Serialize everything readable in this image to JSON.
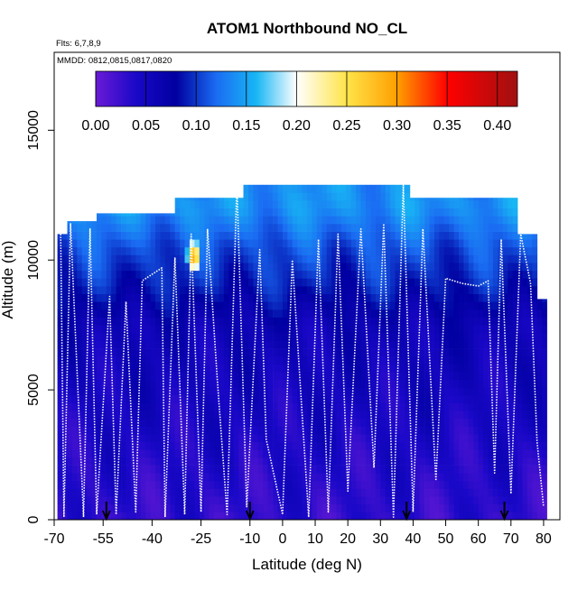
{
  "chart_data": {
    "type": "heatmap",
    "title": "ATOM1 Northbound NO_CL",
    "info_lines": [
      "Flts: 6,7,8,9",
      "MMDD: 0812,0815,0817,0820"
    ],
    "xlabel": "Latitude (deg N)",
    "ylabel": "Altitude (m)",
    "xlim": [
      -70,
      85
    ],
    "ylim": [
      0,
      18000
    ],
    "x_ticks": [
      -70,
      -55,
      -40,
      -25,
      -10,
      0,
      10,
      20,
      30,
      40,
      50,
      60,
      70,
      80
    ],
    "y_ticks": [
      0,
      5000,
      10000,
      15000
    ],
    "colorbar": {
      "range": [
        0,
        0.42
      ],
      "tick_values": [
        0.0,
        0.05,
        0.1,
        0.15,
        0.2,
        0.25,
        0.3,
        0.35,
        0.4
      ],
      "tick_labels": [
        "0.00",
        "0.05",
        "0.10",
        "0.15",
        "0.20",
        "0.25",
        "0.30",
        "0.35",
        "0.40"
      ],
      "colors": [
        "#6a1bd6",
        "#1a08c8",
        "#0000a0",
        "#1a6cf2",
        "#18b6f4",
        "#ffffff",
        "#ffe44a",
        "#ff9f00",
        "#ff0000",
        "#a01010"
      ],
      "color_stops": [
        0.0,
        0.04,
        0.08,
        0.12,
        0.16,
        0.2,
        0.25,
        0.3,
        0.35,
        0.42
      ]
    },
    "grid": false,
    "legend": "none",
    "column_tops": [
      {
        "lat_range": [
          -69,
          -67
        ],
        "top_m": 11000
      },
      {
        "lat_range": [
          -67,
          -58
        ],
        "top_m": 11500
      },
      {
        "lat_range": [
          -58,
          -34
        ],
        "top_m": 11800
      },
      {
        "lat_range": [
          -34,
          -12
        ],
        "top_m": 12400
      },
      {
        "lat_range": [
          -12,
          38
        ],
        "top_m": 12900
      },
      {
        "lat_range": [
          38,
          71
        ],
        "top_m": 12400
      },
      {
        "lat_range": [
          71,
          78
        ],
        "top_m": 11000
      },
      {
        "lat_range": [
          78,
          80
        ],
        "top_m": 8500
      }
    ],
    "column_bottoms": [
      {
        "lat_range": [
          -69,
          80
        ],
        "bottom_m": 0
      },
      {
        "lat_range": [
          80,
          82
        ],
        "bottom_m": 500
      }
    ],
    "profile_values": [
      {
        "alt_m": 0,
        "value": 0.03
      },
      {
        "alt_m": 2500,
        "value": 0.04
      },
      {
        "alt_m": 5000,
        "value": 0.05
      },
      {
        "alt_m": 7500,
        "value": 0.06
      },
      {
        "alt_m": 9000,
        "value": 0.09
      },
      {
        "alt_m": 10500,
        "value": 0.11
      },
      {
        "alt_m": 12000,
        "value": 0.14
      }
    ],
    "hotspots": [
      {
        "lat": -28,
        "alt_m": 10000,
        "value": 0.34
      }
    ],
    "flight_track": [
      {
        "lat": -68,
        "alt_m": 11000
      },
      {
        "lat": -67,
        "alt_m": 100
      },
      {
        "lat": -65,
        "alt_m": 11400
      },
      {
        "lat": -61,
        "alt_m": 100
      },
      {
        "lat": -59,
        "alt_m": 11200
      },
      {
        "lat": -57,
        "alt_m": 200
      },
      {
        "lat": -53,
        "alt_m": 8600
      },
      {
        "lat": -51,
        "alt_m": 200
      },
      {
        "lat": -48,
        "alt_m": 8400
      },
      {
        "lat": -45,
        "alt_m": 300
      },
      {
        "lat": -43,
        "alt_m": 9200
      },
      {
        "lat": -37,
        "alt_m": 9700
      },
      {
        "lat": -36,
        "alt_m": 100
      },
      {
        "lat": -33,
        "alt_m": 10100
      },
      {
        "lat": -30,
        "alt_m": 200
      },
      {
        "lat": -28,
        "alt_m": 11000
      },
      {
        "lat": -25,
        "alt_m": 300
      },
      {
        "lat": -23,
        "alt_m": 11200
      },
      {
        "lat": -20,
        "alt_m": 5400
      },
      {
        "lat": -17,
        "alt_m": 200
      },
      {
        "lat": -14,
        "alt_m": 12900
      },
      {
        "lat": -11,
        "alt_m": 500
      },
      {
        "lat": -7,
        "alt_m": 10400
      },
      {
        "lat": -5,
        "alt_m": 3100
      },
      {
        "lat": 0,
        "alt_m": 200
      },
      {
        "lat": 3,
        "alt_m": 10000
      },
      {
        "lat": 8,
        "alt_m": 100
      },
      {
        "lat": 11,
        "alt_m": 10800
      },
      {
        "lat": 14,
        "alt_m": 300
      },
      {
        "lat": 17,
        "alt_m": 11000
      },
      {
        "lat": 20,
        "alt_m": 1100
      },
      {
        "lat": 24,
        "alt_m": 11200
      },
      {
        "lat": 28,
        "alt_m": 2000
      },
      {
        "lat": 31,
        "alt_m": 11400
      },
      {
        "lat": 34,
        "alt_m": 100
      },
      {
        "lat": 37,
        "alt_m": 12900
      },
      {
        "lat": 40,
        "alt_m": 300
      },
      {
        "lat": 43,
        "alt_m": 11200
      },
      {
        "lat": 47,
        "alt_m": 1500
      },
      {
        "lat": 50,
        "alt_m": 9300
      },
      {
        "lat": 55,
        "alt_m": 9100
      },
      {
        "lat": 60,
        "alt_m": 9000
      },
      {
        "lat": 63,
        "alt_m": 9200
      },
      {
        "lat": 65,
        "alt_m": 1800
      },
      {
        "lat": 67,
        "alt_m": 10800
      },
      {
        "lat": 70,
        "alt_m": 1000
      },
      {
        "lat": 73,
        "alt_m": 11000
      },
      {
        "lat": 76,
        "alt_m": 9100
      },
      {
        "lat": 78,
        "alt_m": 3000
      },
      {
        "lat": 80,
        "alt_m": 500
      }
    ],
    "arrows_lat": [
      -54,
      -10,
      38,
      68
    ]
  }
}
